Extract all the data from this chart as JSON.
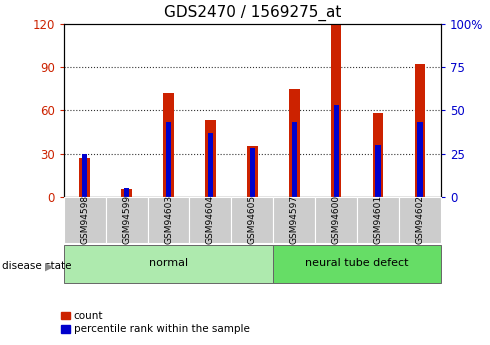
{
  "title": "GDS2470 / 1569275_at",
  "samples": [
    "GSM94598",
    "GSM94599",
    "GSM94603",
    "GSM94604",
    "GSM94605",
    "GSM94597",
    "GSM94600",
    "GSM94601",
    "GSM94602"
  ],
  "count_values": [
    27,
    5,
    72,
    53,
    35,
    75,
    120,
    58,
    92
  ],
  "percentile_values": [
    25,
    5,
    43,
    37,
    28,
    43,
    53,
    30,
    43
  ],
  "groups": [
    {
      "label": "normal",
      "indices": [
        0,
        1,
        2,
        3,
        4
      ],
      "color": "#aeeaae"
    },
    {
      "label": "neural tube defect",
      "indices": [
        5,
        6,
        7,
        8
      ],
      "color": "#66dd66"
    }
  ],
  "bar_width": 0.25,
  "red_color": "#cc2200",
  "blue_color": "#0000cc",
  "ylim_left": [
    0,
    120
  ],
  "ylim_right": [
    0,
    100
  ],
  "yticks_left": [
    0,
    30,
    60,
    90,
    120
  ],
  "yticks_right": [
    0,
    25,
    50,
    75,
    100
  ],
  "ytick_labels_right": [
    "0",
    "25",
    "50",
    "75",
    "100%"
  ],
  "grid_color": "#333333",
  "bg_color": "#ffffff",
  "tick_bg_color": "#cccccc",
  "title_fontsize": 11,
  "axis_label_color_left": "#cc2200",
  "axis_label_color_right": "#0000cc",
  "legend_items": [
    "count",
    "percentile rank within the sample"
  ],
  "disease_state_label": "disease state",
  "arrow_color": "#888888"
}
